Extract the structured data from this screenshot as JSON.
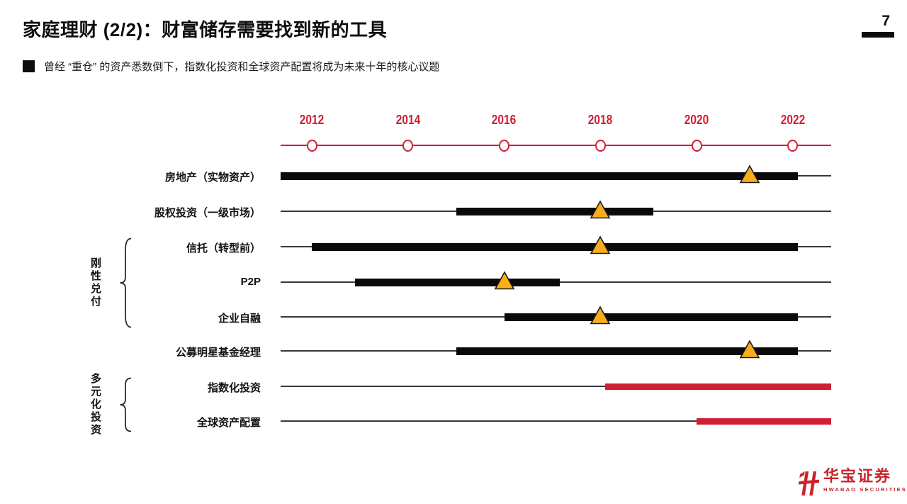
{
  "page": {
    "title": "家庭理财 (2/2)：财富储存需要找到新的工具",
    "page_number": "7",
    "bullet_text": "曾经 “重仓” 的资产悉数倒下，指数化投资和全球资产配置将成为未来十年的核心议题"
  },
  "chart_data": {
    "type": "gantt",
    "title": "",
    "x_axis": {
      "tick_years": [
        2012,
        2014,
        2016,
        2018,
        2020,
        2022
      ],
      "line_start_year": 2011.35,
      "line_end_year": 2022.8,
      "grid": false
    },
    "rows": [
      {
        "label": "房地产（实物资产）",
        "bar_start": 2011.35,
        "bar_end": 2022.1,
        "marker_year": 2021.1,
        "color": "black"
      },
      {
        "label": "股权投资（一级市场）",
        "bar_start": 2015.0,
        "bar_end": 2019.1,
        "marker_year": 2018.0,
        "color": "black"
      },
      {
        "label": "信托（转型前）",
        "bar_start": 2012.0,
        "bar_end": 2022.1,
        "marker_year": 2018.0,
        "color": "black"
      },
      {
        "label": "P2P",
        "bar_start": 2012.9,
        "bar_end": 2017.15,
        "marker_year": 2016.0,
        "color": "black"
      },
      {
        "label": "企业自融",
        "bar_start": 2016.0,
        "bar_end": 2022.1,
        "marker_year": 2018.0,
        "color": "black"
      },
      {
        "label": "公募明星基金经理",
        "bar_start": 2015.0,
        "bar_end": 2022.1,
        "marker_year": 2021.1,
        "color": "black"
      },
      {
        "label": "指数化投资",
        "bar_start": 2018.1,
        "bar_end": 2022.8,
        "marker_year": null,
        "color": "red"
      },
      {
        "label": "全球资产配置",
        "bar_start": 2020.0,
        "bar_end": 2022.8,
        "marker_year": null,
        "color": "red"
      }
    ],
    "groups": [
      {
        "label": "刚性兑付",
        "first_row": 2,
        "last_row": 4
      },
      {
        "label": "多元化投资",
        "first_row": 6,
        "last_row": 7
      }
    ],
    "colors": {
      "accent_red": "#CE1F34",
      "bar_black": "#0a0a0a",
      "marker_yellow": "#F8AD1D",
      "marker_outline": "#1a1a1a",
      "thin_line": "#383838"
    },
    "marker_icon": "warning-triangle-icon"
  },
  "footer": {
    "logo_cn": "华宝证券",
    "logo_en": "HWABAO SECURITIES",
    "logo_color": "#C9242B"
  }
}
